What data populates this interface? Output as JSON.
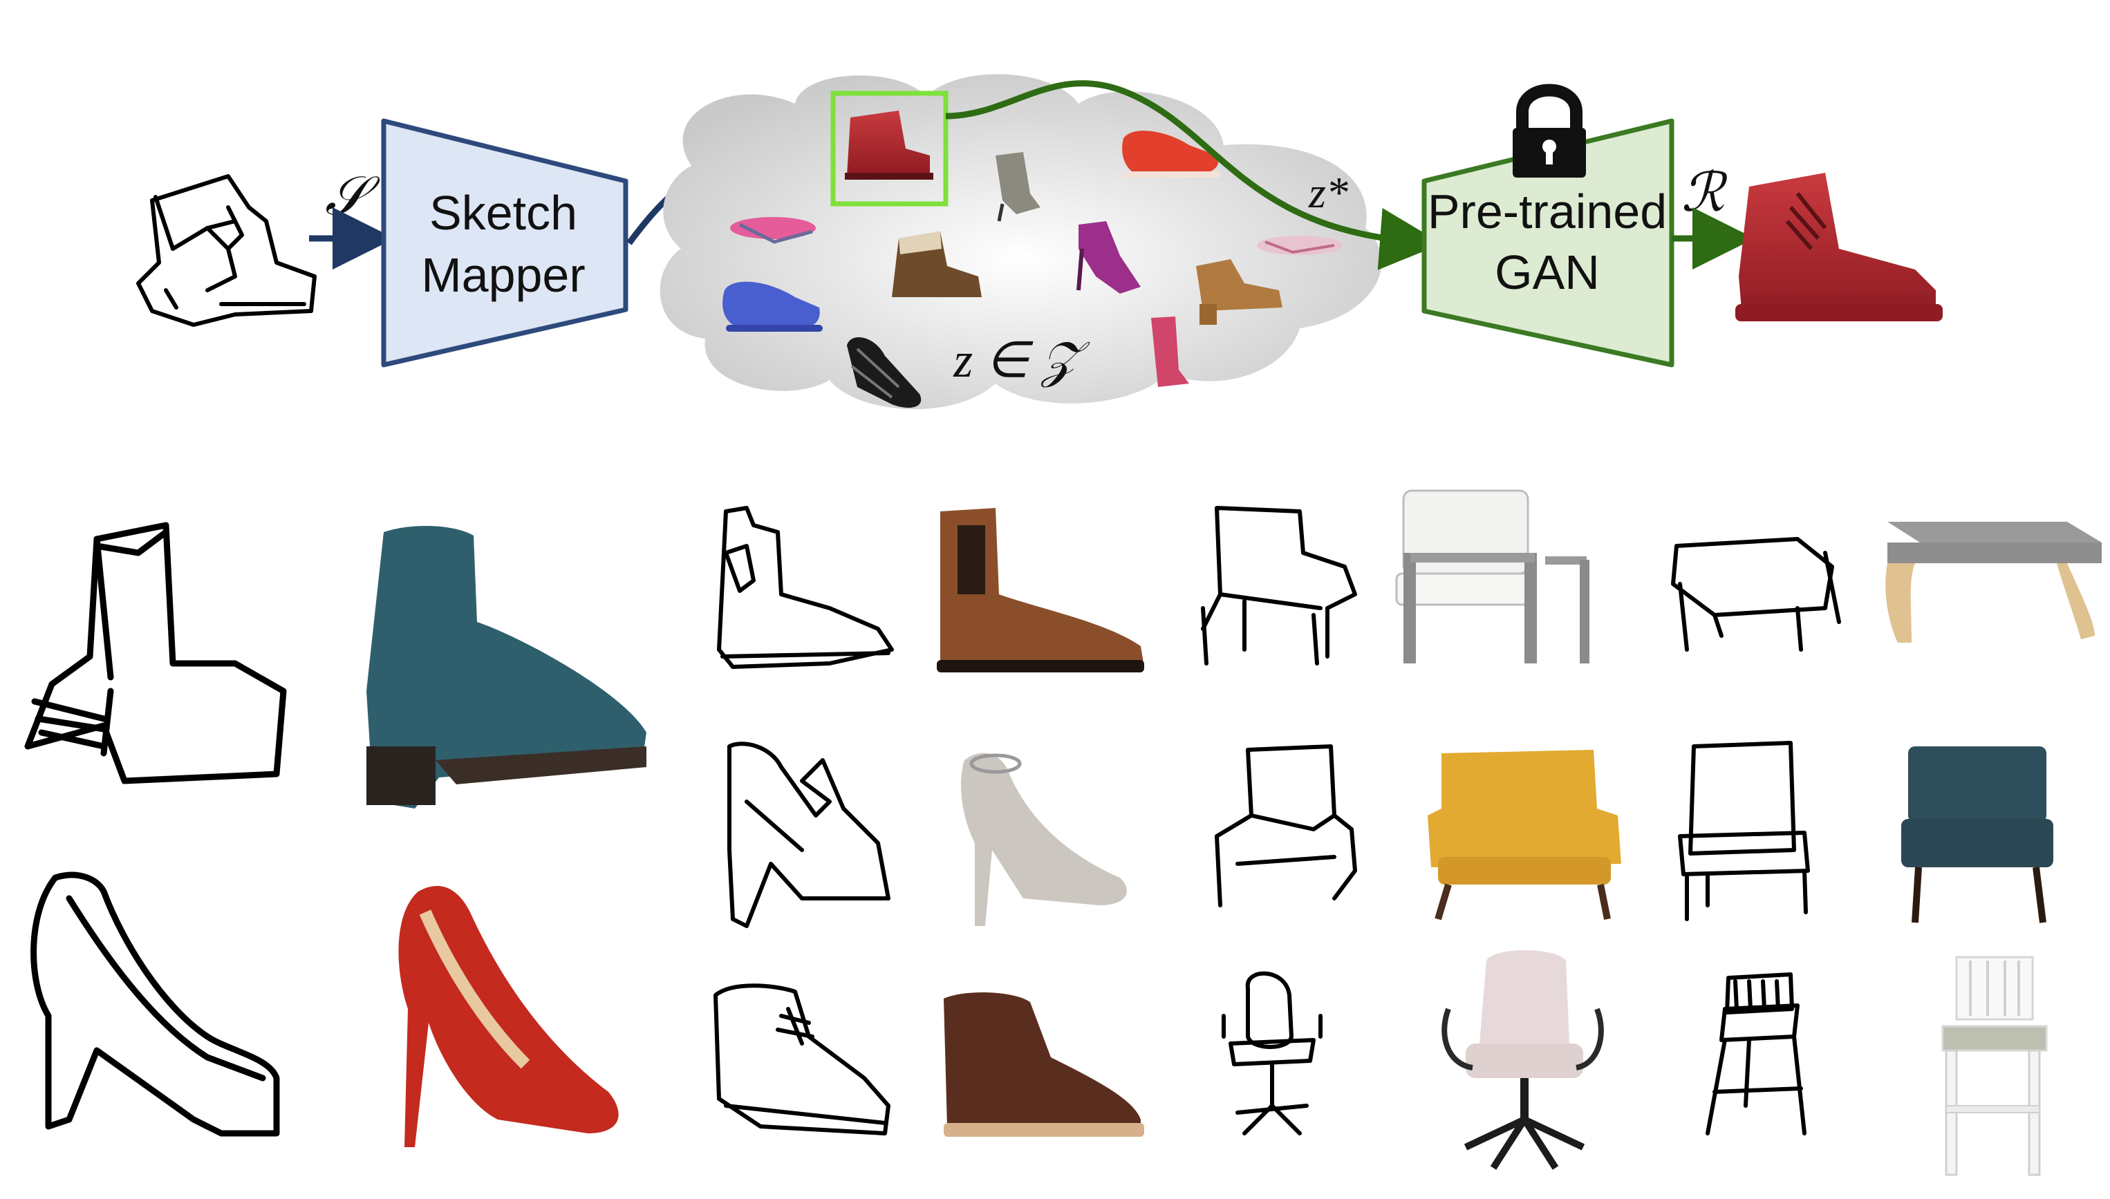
{
  "pipeline": {
    "sketch_symbol": "𝒮",
    "mapper_label_line1": "Sketch",
    "mapper_label_line2": "Mapper",
    "latent_label": "z ∈ 𝒵",
    "zstar_label": "z*",
    "gan_label_line1": "Pre-trained",
    "gan_label_line2": "GAN",
    "output_symbol": "ℛ",
    "lock_icon": "lock-icon"
  },
  "colors": {
    "mapper_fill": "#dde6f4",
    "mapper_stroke": "#2d4a7c",
    "gan_fill": "#dcebd2",
    "gan_stroke": "#3b7a22",
    "arrow_blue": "#1f3864",
    "arrow_green": "#2e6b12",
    "highlight_box": "#7fe03a",
    "shoe_red": "#b3202a"
  }
}
